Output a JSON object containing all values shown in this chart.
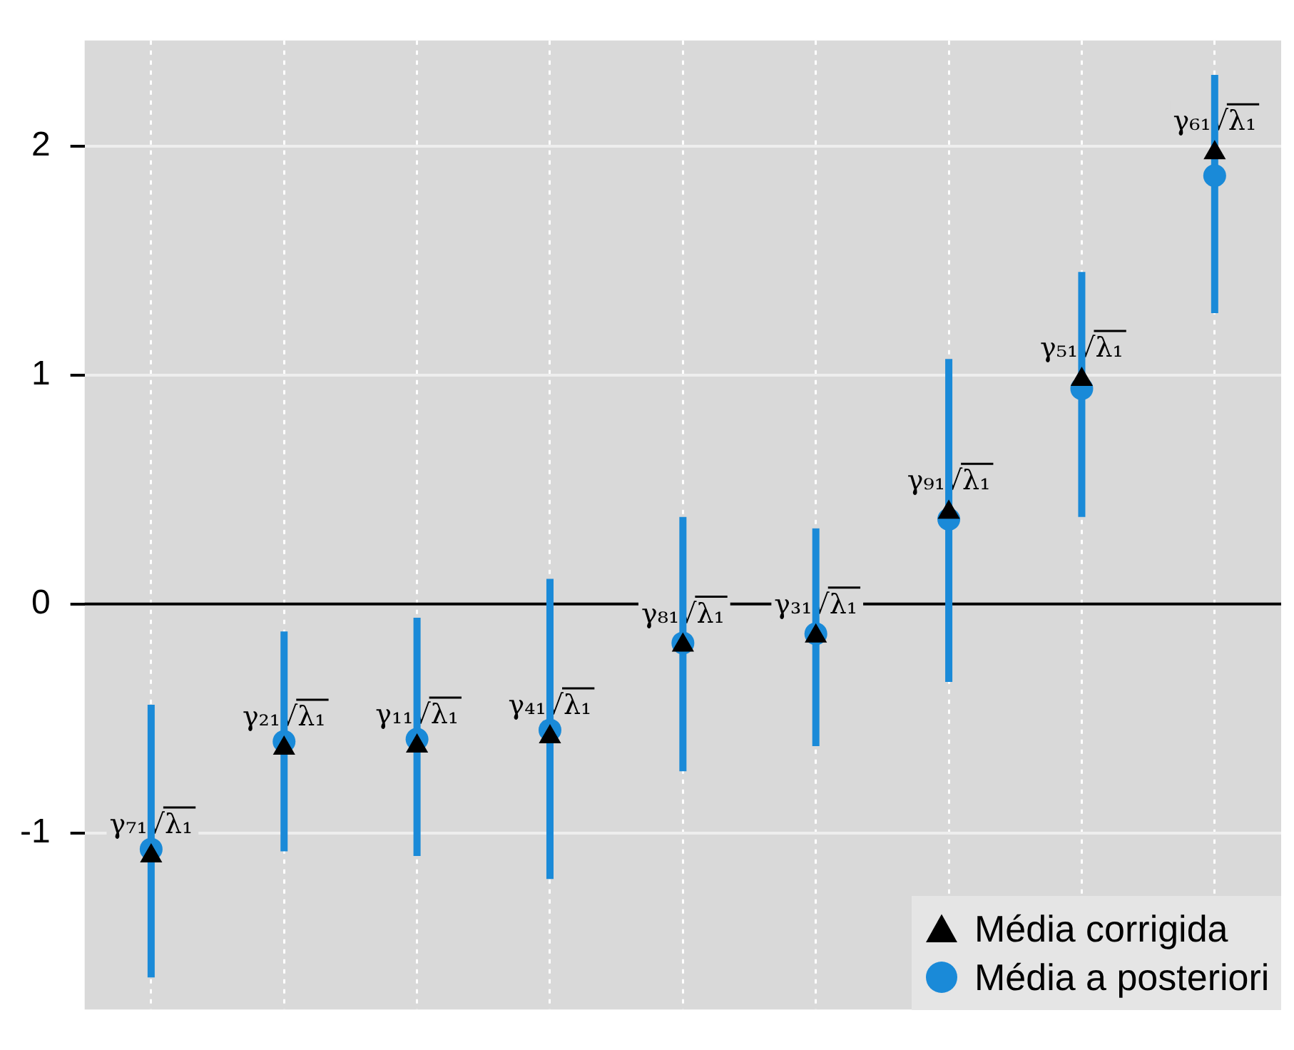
{
  "chart_data": {
    "type": "scatter",
    "categories": [
      null,
      null,
      null,
      null,
      null,
      null,
      null,
      null,
      null
    ],
    "series": [
      {
        "name": "Média corrigida",
        "color": "#000000",
        "marker": "triangle",
        "values": [
          -1.1,
          -0.63,
          -0.62,
          -0.58,
          -0.18,
          -0.14,
          0.4,
          0.98,
          1.97
        ]
      },
      {
        "name": "Média a posteriori",
        "color": "#1a8ad8",
        "marker": "circle",
        "values": [
          -1.07,
          -0.6,
          -0.59,
          -0.55,
          -0.17,
          -0.13,
          0.37,
          0.94,
          1.87
        ],
        "errors": [
          [
            -1.63,
            -0.44
          ],
          [
            -1.08,
            -0.12
          ],
          [
            -1.1,
            -0.06
          ],
          [
            -1.2,
            0.11
          ],
          [
            -0.73,
            0.38
          ],
          [
            -0.62,
            0.33
          ],
          [
            -0.34,
            1.07
          ],
          [
            0.38,
            1.45
          ],
          [
            1.27,
            2.31
          ]
        ]
      }
    ],
    "ylim": [
      -1.77,
      2.46
    ],
    "yticks": [
      -1,
      0,
      1,
      2
    ],
    "grid": true,
    "legend": "bottom right",
    "tick_labels": "y",
    "ref_lines": [
      {
        "axis": "y",
        "value": 0,
        "color": "#000000"
      }
    ],
    "annotations": [
      {
        "text": "γ₇₁√λ₁",
        "y": -1.1
      },
      {
        "text": "γ₂₁√λ₁",
        "y": -0.63
      },
      {
        "text": "γ₁₁√λ₁",
        "y": -0.62
      },
      {
        "text": "γ₄₁√λ₁",
        "y": -0.58
      },
      {
        "text": "γ₈₁√λ₁",
        "y": -0.18
      },
      {
        "text": "γ₃₁√λ₁",
        "y": -0.14
      },
      {
        "text": "γ₉₁√λ₁",
        "y": 0.4
      },
      {
        "text": "γ₅₁√λ₁",
        "y": 0.98
      },
      {
        "text": "γ₆₁√λ₁",
        "y": 1.97
      }
    ]
  }
}
